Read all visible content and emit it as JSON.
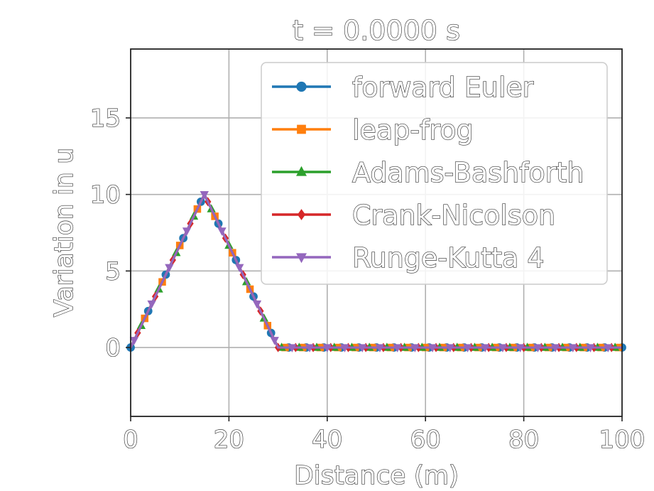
{
  "chart_data": {
    "type": "line",
    "title": "t = 0.0000 s",
    "xlabel": "Distance (m)",
    "ylabel": "Variation in u",
    "xlim": [
      0,
      100
    ],
    "ylim": [
      -4.5,
      19.5
    ],
    "xticks": [
      0,
      20,
      40,
      60,
      80,
      100
    ],
    "xtick_labels": [
      "0",
      "20",
      "40",
      "60",
      "80",
      "100"
    ],
    "yticks": [
      0,
      5,
      10,
      15
    ],
    "ytick_labels": [
      "0",
      "5",
      "10",
      "15"
    ],
    "grid": true,
    "legend_position": "upper-right",
    "series": [
      {
        "name": "forward Euler",
        "color": "#1f77b4",
        "marker": "circle",
        "marker_offset": 0
      },
      {
        "name": "leap-frog",
        "color": "#ff7f0e",
        "marker": "square",
        "marker_offset": 1
      },
      {
        "name": "Adams-Bashforth",
        "color": "#2ca02c",
        "marker": "triangle-up",
        "marker_offset": 2
      },
      {
        "name": "Crank-Nicolson",
        "color": "#d62728",
        "marker": "diamond",
        "marker_offset": 3
      },
      {
        "name": "Runge-Kutta 4",
        "color": "#9467bd",
        "marker": "triangle-down",
        "marker_offset": 4
      }
    ],
    "profile": {
      "shape": "triangle",
      "start": 0,
      "peak_x": 15,
      "peak_y": 10,
      "end": 30,
      "x_max": 100,
      "step": 0.714285
    }
  }
}
